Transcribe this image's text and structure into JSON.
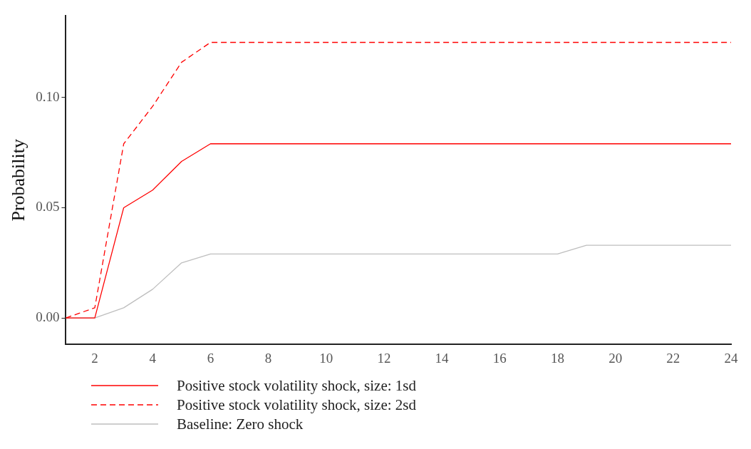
{
  "chart_data": {
    "type": "line",
    "ylabel": "Probability",
    "x": [
      1,
      2,
      3,
      4,
      5,
      6,
      7,
      8,
      9,
      10,
      11,
      12,
      13,
      14,
      15,
      16,
      17,
      18,
      19,
      20,
      21,
      22,
      23,
      24
    ],
    "series": [
      {
        "name": "Positive stock volatility shock, size: 1sd",
        "color": "#ff0000",
        "line_style": "solid",
        "values": [
          0,
          0,
          0.05,
          0.058,
          0.071,
          0.079,
          0.079,
          0.079,
          0.079,
          0.079,
          0.079,
          0.079,
          0.079,
          0.079,
          0.079,
          0.079,
          0.079,
          0.079,
          0.079,
          0.079,
          0.079,
          0.079,
          0.079,
          0.079
        ]
      },
      {
        "name": "Positive stock volatility shock, size: 2sd",
        "color": "#ff0000",
        "line_style": "dashed",
        "values": [
          0,
          0.0046,
          0.079,
          0.096,
          0.116,
          0.125,
          0.125,
          0.125,
          0.125,
          0.125,
          0.125,
          0.125,
          0.125,
          0.125,
          0.125,
          0.125,
          0.125,
          0.125,
          0.125,
          0.125,
          0.125,
          0.125,
          0.125,
          0.125
        ]
      },
      {
        "name": "Baseline: Zero shock",
        "color": "#bebebe",
        "line_style": "solid",
        "values": [
          0,
          0,
          0.0046,
          0.013,
          0.025,
          0.029,
          0.029,
          0.029,
          0.029,
          0.029,
          0.029,
          0.029,
          0.029,
          0.029,
          0.029,
          0.029,
          0.029,
          0.029,
          0.033,
          0.033,
          0.033,
          0.033,
          0.033,
          0.033
        ]
      }
    ],
    "xlim": [
      1,
      24
    ],
    "xticks": [
      2,
      4,
      6,
      8,
      10,
      12,
      14,
      16,
      18,
      20,
      22,
      24
    ],
    "ylim": [
      -0.012,
      0.137
    ],
    "yticks": [
      {
        "value": 0,
        "label": "0.00"
      },
      {
        "value": 0.05,
        "label": "0.05"
      },
      {
        "value": 0.1,
        "label": "0.10"
      }
    ],
    "grid": false,
    "legend": "bottom",
    "marker": "none"
  }
}
